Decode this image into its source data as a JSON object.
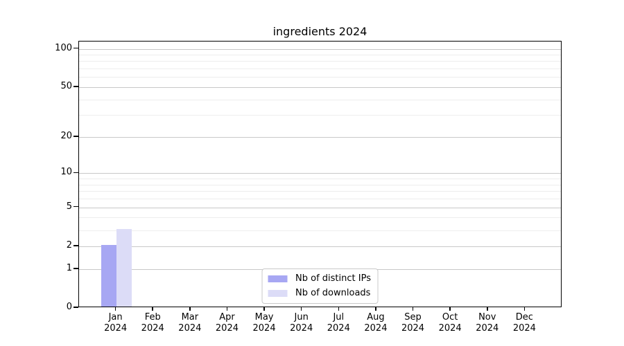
{
  "chart_data": {
    "type": "bar",
    "title": "ingredients 2024",
    "categories": [
      "Jan\n2024",
      "Feb\n2024",
      "Mar\n2024",
      "Apr\n2024",
      "May\n2024",
      "Jun\n2024",
      "Jul\n2024",
      "Aug\n2024",
      "Sep\n2024",
      "Oct\n2024",
      "Nov\n2024",
      "Dec\n2024"
    ],
    "series": [
      {
        "id": "distinct-ips",
        "name": "Nb of distinct IPs",
        "color": "#a7a7f3",
        "values": [
          2,
          0,
          0,
          0,
          0,
          0,
          0,
          0,
          0,
          0,
          0,
          0
        ]
      },
      {
        "id": "downloads",
        "name": "Nb of downloads",
        "color": "#dcdcf7",
        "values": [
          3,
          0,
          0,
          0,
          0,
          0,
          0,
          0,
          0,
          0,
          0,
          0
        ]
      }
    ],
    "yscale": "log1p",
    "ylim": [
      0,
      114
    ],
    "yticks": [
      0,
      1,
      2,
      5,
      10,
      20,
      50,
      100
    ],
    "yticks_minor": [
      3,
      4,
      6,
      7,
      8,
      9,
      30,
      40,
      60,
      70,
      80,
      90
    ],
    "grid": true,
    "legend_position": "lower center",
    "styles": {
      "grid_major": "#c8c8c8",
      "grid_minor": "#ededed",
      "axis": "#000000",
      "legend_border": "#c9c9c9",
      "background": "#ffffff",
      "text": "#000000"
    }
  }
}
